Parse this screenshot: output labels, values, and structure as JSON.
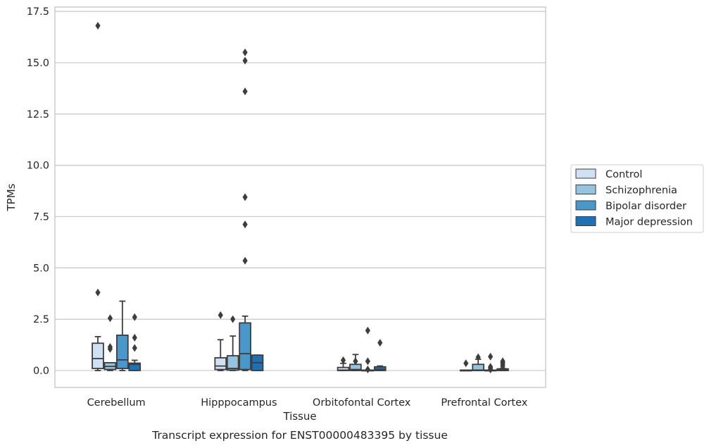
{
  "chart_data": {
    "type": "box",
    "title": "",
    "caption": "Transcript expression for ENST00000483395 by tissue",
    "xlabel": "Tissue",
    "ylabel": "TPMs",
    "ylim": [
      -0.8,
      17.6
    ],
    "yticks": [
      0.0,
      2.5,
      5.0,
      7.5,
      10.0,
      12.5,
      15.0,
      17.5
    ],
    "ytick_labels": [
      "0.0",
      "2.5",
      "5.0",
      "7.5",
      "10.0",
      "12.5",
      "15.0",
      "17.5"
    ],
    "grid": "horizontal",
    "legend_position": "right",
    "categories": [
      "Cerebellum",
      "Hipppocampus",
      "Orbitofontal Cortex",
      "Prefrontal Cortex"
    ],
    "series": [
      {
        "name": "Control",
        "color": "#cfe1f2",
        "boxes": [
          {
            "whislo": 0.0,
            "q1": 0.1,
            "med": 0.58,
            "q3": 1.33,
            "whishi": 1.65,
            "fliers": [
              3.8,
              16.8
            ]
          },
          {
            "whislo": 0.0,
            "q1": 0.05,
            "med": 0.22,
            "q3": 0.62,
            "whishi": 1.5,
            "fliers": [
              2.7
            ]
          },
          {
            "whislo": 0.0,
            "q1": 0.0,
            "med": 0.02,
            "q3": 0.15,
            "whishi": 0.35,
            "fliers": [
              0.5
            ]
          },
          {
            "whislo": 0.0,
            "q1": 0.0,
            "med": 0.0,
            "q3": 0.02,
            "whishi": 0.02,
            "fliers": [
              0.35
            ]
          }
        ]
      },
      {
        "name": "Schizophrenia",
        "color": "#94c4df",
        "boxes": [
          {
            "whislo": 0.0,
            "q1": 0.05,
            "med": 0.2,
            "q3": 0.38,
            "whishi": 0.38,
            "fliers": [
              1.05,
              1.15,
              2.55
            ]
          },
          {
            "whislo": 0.0,
            "q1": 0.02,
            "med": 0.1,
            "q3": 0.72,
            "whishi": 1.68,
            "fliers": [
              2.5
            ]
          },
          {
            "whislo": 0.0,
            "q1": 0.0,
            "med": 0.05,
            "q3": 0.3,
            "whishi": 0.78,
            "fliers": [
              0.45
            ]
          },
          {
            "whislo": 0.0,
            "q1": 0.0,
            "med": 0.02,
            "q3": 0.3,
            "whishi": 0.55,
            "fliers": [
              0.65
            ]
          }
        ]
      },
      {
        "name": "Bipolar disorder",
        "color": "#4a98c9",
        "boxes": [
          {
            "whislo": 0.0,
            "q1": 0.1,
            "med": 0.52,
            "q3": 1.72,
            "whishi": 3.38,
            "fliers": []
          },
          {
            "whislo": 0.0,
            "q1": 0.05,
            "med": 0.82,
            "q3": 2.32,
            "whishi": 2.65,
            "fliers": [
              5.35,
              7.12,
              8.45,
              13.6,
              15.5,
              15.1
            ]
          },
          {
            "whislo": 0.0,
            "q1": 0.0,
            "med": 0.0,
            "q3": 0.02,
            "whishi": 0.02,
            "fliers": [
              0.05,
              0.45,
              1.95
            ]
          },
          {
            "whislo": 0.0,
            "q1": 0.0,
            "med": 0.0,
            "q3": 0.02,
            "whishi": 0.02,
            "fliers": [
              0.05,
              0.12,
              0.18,
              0.68
            ]
          }
        ]
      },
      {
        "name": "Major depression",
        "color": "#2070b4",
        "boxes": [
          {
            "whislo": 0.0,
            "q1": 0.0,
            "med": 0.3,
            "q3": 0.36,
            "whishi": 0.5,
            "fliers": [
              1.1,
              1.6,
              2.6
            ]
          },
          {
            "whislo": 0.0,
            "q1": 0.0,
            "med": 0.38,
            "q3": 0.75,
            "whishi": 0.75,
            "fliers": []
          },
          {
            "whislo": 0.0,
            "q1": 0.0,
            "med": 0.05,
            "q3": 0.18,
            "whishi": 0.22,
            "fliers": [
              1.35
            ]
          },
          {
            "whislo": 0.0,
            "q1": 0.0,
            "med": 0.02,
            "q3": 0.08,
            "whishi": 0.1,
            "fliers": [
              0.2,
              0.3,
              0.38,
              0.45
            ]
          }
        ]
      }
    ]
  }
}
